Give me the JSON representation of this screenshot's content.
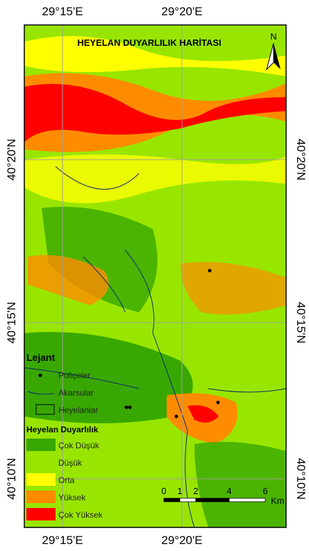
{
  "map": {
    "title": "HEYELAN DUYARLILIK HARİTASI",
    "north": "N",
    "lon_labels": {
      "top": [
        "29°15'E",
        "29°20'E"
      ],
      "bottom": [
        "29°15'E",
        "29°20'E"
      ]
    },
    "lat_labels": {
      "left": [
        "40°20'N",
        "40°15'N",
        "40°10'N"
      ],
      "right": [
        "40°20'N",
        "40°15'N",
        "40°10'N"
      ]
    },
    "legend": {
      "title": "Lejant",
      "items": [
        "Poliçeler",
        "Akarsular",
        "Heyelanlar"
      ],
      "susceptibility_title": "Heyelan Duyarlılık",
      "classes": [
        {
          "label": "Çok Düşük",
          "color": "#38a800"
        },
        {
          "label": "Düşük",
          "color": "#98e600"
        },
        {
          "label": "Orta",
          "color": "#ffff00"
        },
        {
          "label": "Yüksek",
          "color": "#ff8c00"
        },
        {
          "label": "Çok Yüksek",
          "color": "#ff0000"
        }
      ]
    },
    "scale": {
      "ticks": [
        "0",
        "1",
        "2",
        "4",
        "6"
      ],
      "unit": "Km"
    }
  }
}
